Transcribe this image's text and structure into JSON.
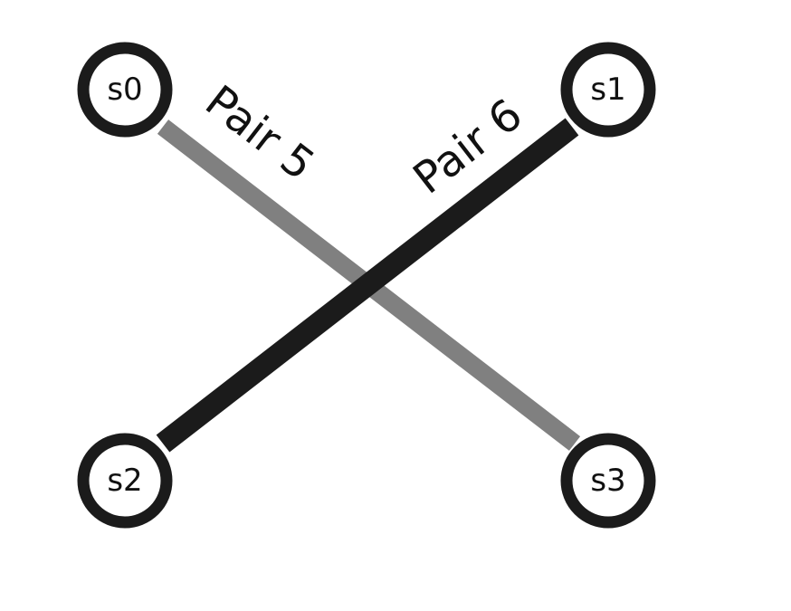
{
  "nodes": {
    "s0": "s0",
    "s1": "s1",
    "s2": "s2",
    "s3": "s3"
  },
  "edges": {
    "pair5": {
      "label": "Pair 5",
      "from": "s0",
      "to": "s3",
      "color": "#808080"
    },
    "pair6": {
      "label": "Pair 6",
      "from": "s2",
      "to": "s1",
      "color": "#1b1b1b"
    }
  },
  "colors": {
    "node_ring": "#1b1b1b",
    "background": "#ffffff"
  }
}
